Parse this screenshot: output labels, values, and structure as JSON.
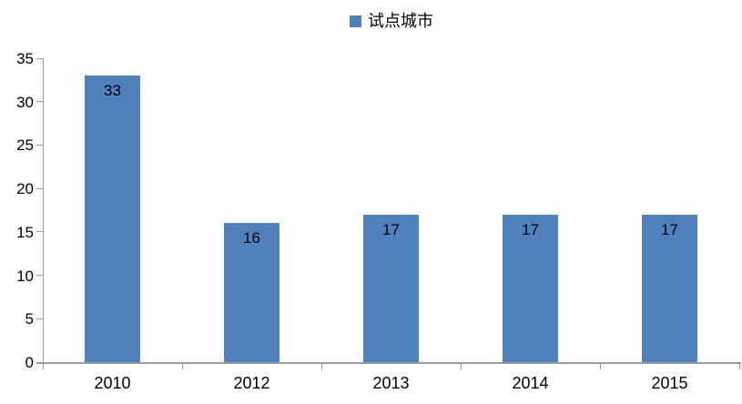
{
  "legend": {
    "label": "试点城市",
    "swatch_icon": "legend-square-swatch"
  },
  "chart_data": {
    "type": "bar",
    "title": "",
    "xlabel": "",
    "ylabel": "",
    "categories": [
      "2010",
      "2012",
      "2013",
      "2014",
      "2015"
    ],
    "series": [
      {
        "name": "试点城市",
        "values": [
          33,
          16,
          17,
          17,
          17
        ]
      }
    ],
    "data_labels": [
      "33",
      "16",
      "17",
      "17",
      "17"
    ],
    "ylim": [
      0,
      35
    ],
    "ytick_step": 5,
    "ytick_labels": [
      "0",
      "5",
      "10",
      "15",
      "20",
      "25",
      "30",
      "35"
    ],
    "grid": false,
    "legend_position": "top-center",
    "bar_color": "#4f81bd",
    "axis_color": "#9b9b9b",
    "text_color": "#000000",
    "background_color": "#ffffff"
  }
}
